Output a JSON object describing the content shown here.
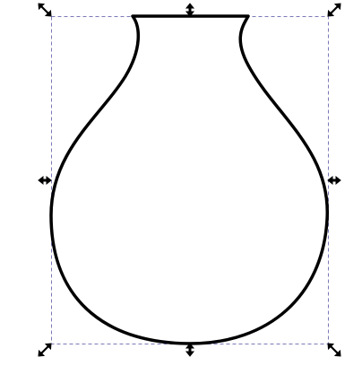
{
  "canvas": {
    "background": "#ffffff"
  },
  "shape": {
    "name": "vase",
    "stroke_color": "#000000",
    "fill": "none"
  },
  "selection": {
    "border_color": "#7a7ab8",
    "handle_color": "#000000",
    "handles": [
      {
        "name": "top-left-scale-handle",
        "icon": "diagonal-arrow-icon"
      },
      {
        "name": "top-center-scale-handle",
        "icon": "vertical-arrow-icon"
      },
      {
        "name": "top-right-scale-handle",
        "icon": "diagonal-arrow-icon"
      },
      {
        "name": "middle-left-scale-handle",
        "icon": "horizontal-arrow-icon"
      },
      {
        "name": "middle-right-scale-handle",
        "icon": "horizontal-arrow-icon"
      },
      {
        "name": "bottom-left-scale-handle",
        "icon": "diagonal-arrow-icon"
      },
      {
        "name": "bottom-center-scale-handle",
        "icon": "vertical-arrow-icon"
      },
      {
        "name": "bottom-right-scale-handle",
        "icon": "diagonal-arrow-icon"
      }
    ]
  }
}
